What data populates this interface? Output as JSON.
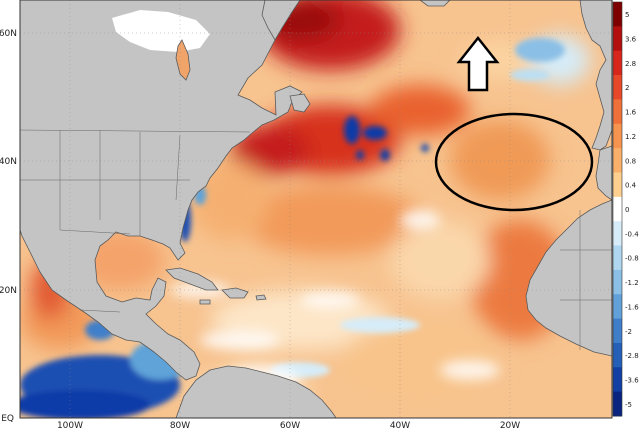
{
  "map": {
    "latitude_labels": [
      "60N",
      "40N",
      "20N",
      "EQ"
    ],
    "longitude_labels": [
      "100W",
      "80W",
      "60W",
      "40W",
      "20W"
    ],
    "colors": {
      "land": "#c4c4c4",
      "land_border": "#5a5a5a",
      "ocean_base": "#f7c38f",
      "warm_strong": "#c41f1f",
      "warm_medium": "#e9622f",
      "warm_light": "#fbd3a0",
      "neutral": "#ffffff",
      "cool_light": "#bcdff3",
      "cool_medium": "#5fa3d9",
      "cool_strong": "#0b3aa7"
    },
    "annotations": [
      {
        "name": "ellipse-marker",
        "shape": "ellipse"
      },
      {
        "name": "arrow-up-marker",
        "shape": "hollow-arrow-up"
      }
    ]
  },
  "colorbar": {
    "labels": [
      "5",
      "3.6",
      "2.8",
      "2",
      "1.6",
      "1.2",
      "0.8",
      "0.4",
      "0",
      "-0.4",
      "-0.8",
      "-1.2",
      "-1.6",
      "-2",
      "-2.8",
      "-3.6",
      "-5"
    ],
    "colors": [
      "#7f0000",
      "#b30f0f",
      "#d7261b",
      "#e8482a",
      "#f0703a",
      "#f6944f",
      "#fab06a",
      "#fdd08f",
      "#ffffff",
      "#d6ecf8",
      "#b0d7f0",
      "#8bbfe6",
      "#62a0d9",
      "#3f7fc9",
      "#255fb7",
      "#123fa3",
      "#0a2580"
    ]
  }
}
